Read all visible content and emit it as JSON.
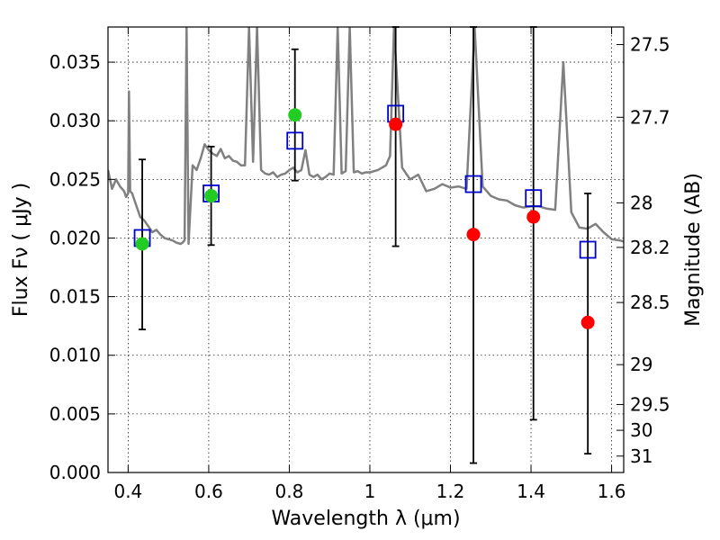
{
  "chart_data": {
    "type": "scatter",
    "title": "",
    "xlabel": "Wavelength  λ (μm)",
    "ylabel": "Flux  Fν  ( μJy )",
    "ylabel_right": "Magnitude (AB)",
    "xlim": [
      0.35,
      1.63
    ],
    "ylim": [
      0.0,
      0.038
    ],
    "grid": true,
    "x_ticks": [
      0.4,
      0.6,
      0.8,
      1.0,
      1.2,
      1.4,
      1.6
    ],
    "x_tick_labels": [
      "0.4",
      "0.6",
      "0.8",
      "1",
      "1.2",
      "1.4",
      "1.6"
    ],
    "y_ticks": [
      0.0,
      0.005,
      0.01,
      0.015,
      0.02,
      0.025,
      0.03,
      0.035
    ],
    "y_tick_labels": [
      "0.000",
      "0.005",
      "0.010",
      "0.015",
      "0.020",
      "0.025",
      "0.030",
      "0.035"
    ],
    "right_axis_ticks": [
      {
        "label": "27.5",
        "flux": 0.0365
      },
      {
        "label": "27.7",
        "flux": 0.0303
      },
      {
        "label": "28",
        "flux": 0.023
      },
      {
        "label": "28.2",
        "flux": 0.0192
      },
      {
        "label": "28.5",
        "flux": 0.0145
      },
      {
        "label": "29",
        "flux": 0.0092
      },
      {
        "label": "29.5",
        "flux": 0.0058
      },
      {
        "label": "30",
        "flux": 0.0036
      },
      {
        "label": "31",
        "flux": 0.0014
      }
    ],
    "colors": {
      "model": "#808080",
      "observed_detected": "#22cc22",
      "observed_upper": "#ff0000",
      "model_photometry": "#0000cc",
      "errorbar": "#000000"
    },
    "observed_points": [
      {
        "x": 0.435,
        "y": 0.0195,
        "err_low": 0.0073,
        "err_high": 0.0072,
        "kind": "detected"
      },
      {
        "x": 0.606,
        "y": 0.0236,
        "err_low": 0.0042,
        "err_high": 0.0042,
        "kind": "detected"
      },
      {
        "x": 0.814,
        "y": 0.0305,
        "err_low": 0.0056,
        "err_high": 0.0056,
        "kind": "detected"
      },
      {
        "x": 1.064,
        "y": 0.0297,
        "err_low": 0.0104,
        "err_high": 0.0083,
        "kind": "upper"
      },
      {
        "x": 1.257,
        "y": 0.0203,
        "err_low": 0.0195,
        "err_high": 0.0177,
        "kind": "upper"
      },
      {
        "x": 1.406,
        "y": 0.0218,
        "err_low": 0.0173,
        "err_high": 0.0162,
        "kind": "upper"
      },
      {
        "x": 1.541,
        "y": 0.0128,
        "err_low": 0.0112,
        "err_high": 0.011,
        "kind": "upper"
      }
    ],
    "model_photometry": [
      {
        "x": 0.435,
        "y": 0.02
      },
      {
        "x": 0.606,
        "y": 0.0238
      },
      {
        "x": 0.814,
        "y": 0.0283
      },
      {
        "x": 1.064,
        "y": 0.0306
      },
      {
        "x": 1.257,
        "y": 0.0246
      },
      {
        "x": 1.406,
        "y": 0.0234
      },
      {
        "x": 1.541,
        "y": 0.019
      }
    ],
    "model_spectrum": {
      "x": [
        0.35,
        0.36,
        0.37,
        0.38,
        0.39,
        0.395,
        0.398,
        0.4,
        0.402,
        0.405,
        0.41,
        0.42,
        0.43,
        0.44,
        0.45,
        0.46,
        0.47,
        0.48,
        0.49,
        0.5,
        0.51,
        0.52,
        0.53,
        0.535,
        0.54,
        0.545,
        0.55,
        0.56,
        0.57,
        0.58,
        0.59,
        0.6,
        0.61,
        0.62,
        0.63,
        0.64,
        0.65,
        0.66,
        0.67,
        0.68,
        0.69,
        0.7,
        0.71,
        0.72,
        0.73,
        0.74,
        0.75,
        0.76,
        0.77,
        0.78,
        0.79,
        0.8,
        0.81,
        0.82,
        0.83,
        0.84,
        0.85,
        0.86,
        0.87,
        0.88,
        0.89,
        0.9,
        0.91,
        0.92,
        0.93,
        0.94,
        0.95,
        0.96,
        0.97,
        0.98,
        0.99,
        1.0,
        1.02,
        1.04,
        1.05,
        1.06,
        1.08,
        1.1,
        1.12,
        1.14,
        1.16,
        1.18,
        1.2,
        1.22,
        1.24,
        1.26,
        1.28,
        1.3,
        1.32,
        1.34,
        1.36,
        1.38,
        1.4,
        1.42,
        1.44,
        1.46,
        1.48,
        1.5,
        1.52,
        1.54,
        1.56,
        1.58,
        1.6,
        1.62,
        1.63
      ],
      "y": [
        0.0258,
        0.0242,
        0.025,
        0.0244,
        0.024,
        0.0235,
        0.0237,
        0.0238,
        0.0325,
        0.024,
        0.0238,
        0.0228,
        0.0218,
        0.0215,
        0.021,
        0.0205,
        0.0207,
        0.0203,
        0.02,
        0.0199,
        0.0198,
        0.0196,
        0.0195,
        0.0196,
        0.0198,
        0.038,
        0.0195,
        0.0262,
        0.0258,
        0.0268,
        0.028,
        0.0275,
        0.0272,
        0.027,
        0.0276,
        0.0268,
        0.027,
        0.0266,
        0.0265,
        0.0262,
        0.0262,
        0.038,
        0.0265,
        0.038,
        0.0258,
        0.0255,
        0.0254,
        0.0256,
        0.0252,
        0.0254,
        0.0255,
        0.0258,
        0.026,
        0.0256,
        0.0258,
        0.0275,
        0.0254,
        0.0252,
        0.0254,
        0.025,
        0.0252,
        0.0255,
        0.0254,
        0.038,
        0.0255,
        0.0257,
        0.038,
        0.0256,
        0.0257,
        0.0255,
        0.0256,
        0.0256,
        0.0258,
        0.0262,
        0.027,
        0.038,
        0.026,
        0.025,
        0.0254,
        0.024,
        0.0242,
        0.0246,
        0.0243,
        0.0244,
        0.0242,
        0.038,
        0.0244,
        0.0236,
        0.0233,
        0.0232,
        0.0228,
        0.0226,
        0.0227,
        0.0227,
        0.0225,
        0.0224,
        0.035,
        0.0222,
        0.0209,
        0.0208,
        0.0212,
        0.0205,
        0.0199,
        0.0198,
        0.0197
      ]
    }
  }
}
